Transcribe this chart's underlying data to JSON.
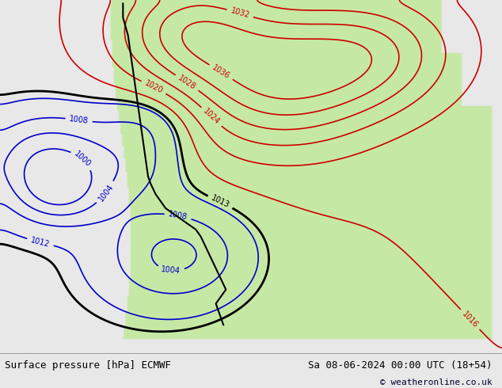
{
  "title_left": "Surface pressure [hPa] ECMWF",
  "title_right": "Sa 08-06-2024 00:00 UTC (18+54)",
  "copyright": "© weatheronline.co.uk",
  "bg_color": "#e8e8e8",
  "land_color": "#c8e8b0",
  "water_color": "#e8e8e8",
  "fig_width": 6.34,
  "fig_height": 4.9,
  "dpi": 100,
  "bottom_bar_color": "#f0f0f0",
  "text_color_left": "#000000",
  "text_color_right": "#000000",
  "copyright_color": "#000033",
  "isobar_blue": "#0000cc",
  "isobar_red": "#cc0000",
  "isobar_black": "#000000"
}
